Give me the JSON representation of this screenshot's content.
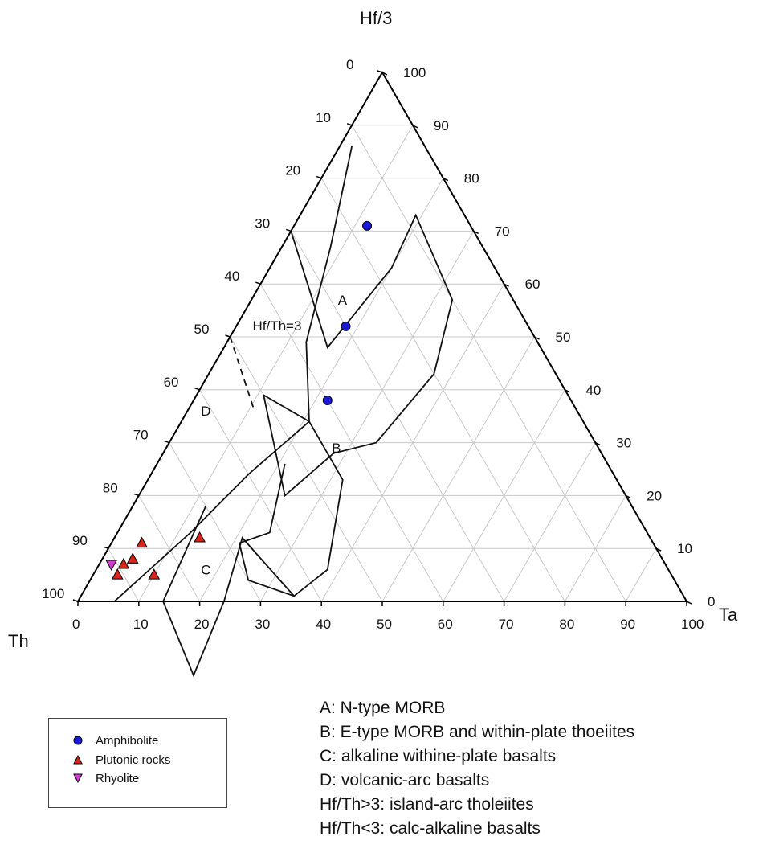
{
  "chart_data": {
    "type": "ternary",
    "apex_labels": {
      "top": "Hf/3",
      "left": "Th",
      "right": "Ta"
    },
    "axis_ticks": [
      "0",
      "10",
      "20",
      "30",
      "40",
      "50",
      "60",
      "70",
      "80",
      "90",
      "100"
    ],
    "grid": true,
    "fields": [
      {
        "name": "A",
        "vertices_th_ta": [
          [
            6,
            8
          ],
          [
            13,
            2
          ],
          [
            32,
            8
          ],
          [
            40,
            23
          ],
          [
            43,
            16
          ],
          [
            39,
            38
          ],
          [
            42,
            30
          ],
          [
            10,
            19
          ],
          [
            9,
            11
          ]
        ]
      },
      {
        "name": "B",
        "vertices_th_ta": [
          [
            42,
            30
          ],
          [
            55,
            37
          ],
          [
            32,
            8
          ],
          [
            39,
            38
          ],
          [
            43,
            16
          ],
          [
            43,
            28
          ],
          [
            53,
            22
          ],
          [
            51,
            37
          ]
        ]
      },
      {
        "name": "C",
        "vertices_th_ta": [
          [
            53,
            22
          ],
          [
            61,
            24
          ],
          [
            70,
            17
          ],
          [
            76,
            13
          ],
          [
            76,
            7
          ],
          [
            46,
            11
          ],
          [
            45,
            24
          ]
        ]
      },
      {
        "name": "D",
        "vertices_th_ta": [
          [
            94,
            6
          ],
          [
            76,
            17
          ],
          [
            72,
            10
          ],
          [
            60,
            12
          ],
          [
            46,
            11
          ],
          [
            39,
            38
          ],
          [
            33,
            9
          ],
          [
            24,
            10
          ],
          [
            23,
            8
          ]
        ]
      }
    ],
    "field_labels": [
      {
        "text": "A",
        "th": 28,
        "ta": 15
      },
      {
        "text": "B",
        "th": 43,
        "ta": 28
      },
      {
        "text": "C",
        "th": 76,
        "ta": 18
      },
      {
        "text": "D",
        "th": 61,
        "ta": 3
      }
    ],
    "boundary_lines": [
      {
        "name": "Hf/Th=3",
        "style": "dashed",
        "label": "Hf/Th=3",
        "from_th_ta": [
          50,
          0
        ],
        "to_th_ta": [
          53,
          11
        ]
      }
    ],
    "series": [
      {
        "name": "Amphibolite",
        "marker": "circle",
        "color": "#1a1ad6",
        "points_th_ta": [
          [
            17,
            12
          ],
          [
            30,
            18
          ],
          [
            40,
            22
          ]
        ]
      },
      {
        "name": "Plutonic rocks",
        "marker": "triangle-up",
        "color": "#d9261c",
        "points_th_ta": [
          [
            84,
            5
          ],
          [
            85,
            10
          ],
          [
            87,
            5
          ],
          [
            89,
            4
          ],
          [
            91,
            4
          ],
          [
            74,
            14
          ]
        ]
      },
      {
        "name": "Rhyolite",
        "marker": "triangle-down",
        "color": "#d63fd6",
        "points_th_ta": [
          [
            91,
            2
          ]
        ]
      }
    ]
  },
  "legend": {
    "items": [
      {
        "label": "Amphibolite",
        "marker": "circle",
        "color": "#1a1ad6"
      },
      {
        "label": "Plutonic rocks",
        "marker": "triangle-up",
        "color": "#d9261c"
      },
      {
        "label": "Rhyolite",
        "marker": "triangle-down",
        "color": "#d63fd6"
      }
    ]
  },
  "key": {
    "lines": [
      "A: N-type MORB",
      "B: E-type MORB and within-plate thoeiites",
      "C: alkaline withine-plate basalts",
      "D: volcanic-arc basalts",
      "Hf/Th>3: island-arc tholeiites",
      "Hf/Th<3: calc-alkaline basalts"
    ]
  }
}
